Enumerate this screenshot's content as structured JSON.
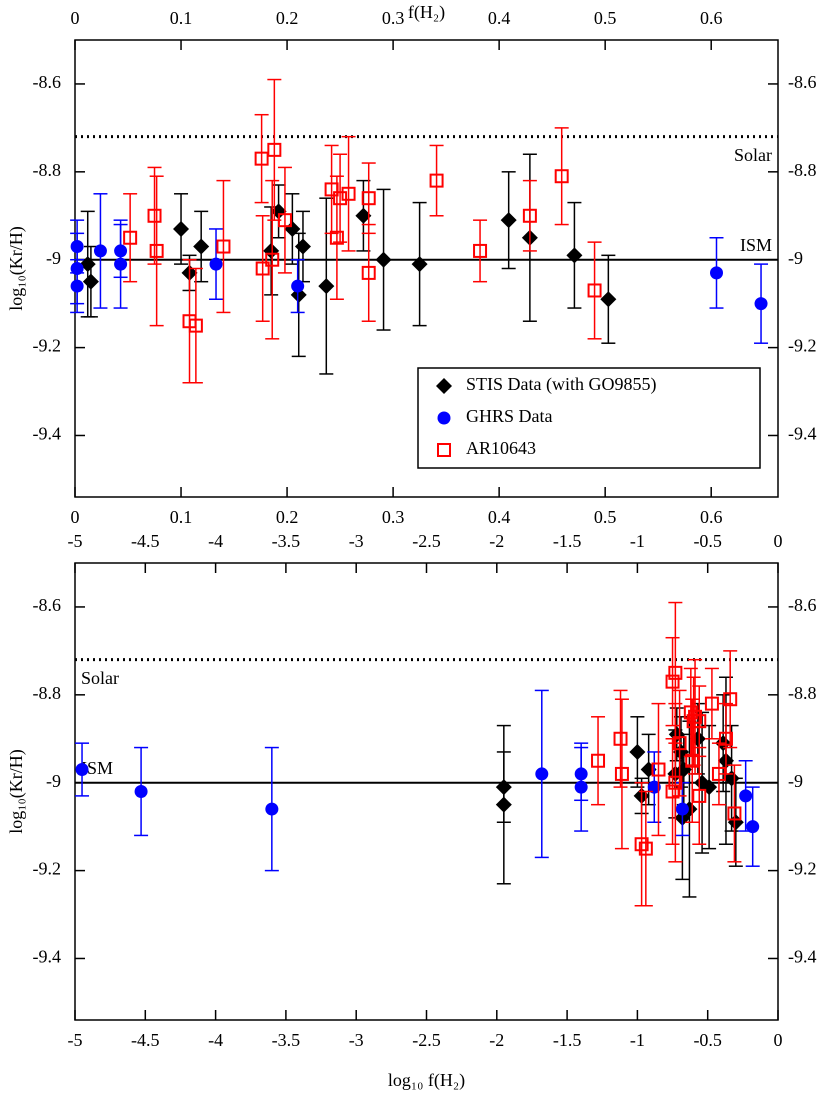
{
  "chart_data": [
    {
      "type": "scatter",
      "xlabel": "f(H₂)",
      "xlabel_side": "top",
      "ylabel": "log₁₀(Kr/H)",
      "xlim": [
        0,
        0.663
      ],
      "xticks": [
        0,
        0.1,
        0.2,
        0.3,
        0.4,
        0.5,
        0.6
      ],
      "ylim": [
        -9.54,
        -8.5
      ],
      "yticks": [
        -8.6,
        -8.8,
        -9,
        -9.2,
        -9.4
      ],
      "mirror_ticks": true,
      "legend": "lower right",
      "hlines": [
        {
          "y": -8.72,
          "label": "Solar",
          "style": "dotted",
          "side": "right"
        },
        {
          "y": -9,
          "label": "ISM",
          "style": "solid",
          "side": "right"
        }
      ],
      "series": [
        {
          "name": "STIS Data (with GO9855)",
          "color": "#000000",
          "marker": "diamond",
          "x": [
            0.012,
            0.015,
            0.1,
            0.108,
            0.119,
            0.185,
            0.192,
            0.205,
            0.211,
            0.215,
            0.237,
            0.272,
            0.291,
            0.325,
            0.409,
            0.429,
            0.471,
            0.503
          ],
          "values": [
            -9.01,
            -9.05,
            -8.93,
            -9.03,
            -8.97,
            -8.98,
            -8.89,
            -8.93,
            -9.08,
            -8.97,
            -9.06,
            -8.9,
            -9.0,
            -9.01,
            -8.91,
            -8.95,
            -8.99,
            -9.09
          ],
          "errors": [
            0.12,
            0.08,
            0.08,
            0.04,
            0.08,
            0.1,
            0.06,
            0.08,
            0.14,
            0.08,
            0.2,
            0.08,
            0.16,
            0.14,
            0.11,
            0.19,
            0.12,
            0.1
          ]
        },
        {
          "name": "GHRS Data",
          "color": "#0000ff",
          "marker": "circle",
          "x": [
            0.002,
            0.002,
            0.002,
            0.024,
            0.043,
            0.043,
            0.133,
            0.21,
            0.605,
            0.647
          ],
          "values": [
            -8.97,
            -9.02,
            -9.06,
            -8.98,
            -8.98,
            -9.01,
            -9.01,
            -9.06,
            -9.03,
            -9.1
          ],
          "errors": [
            0.06,
            0.08,
            0.06,
            0.13,
            0.06,
            0.1,
            0.08,
            0.06,
            0.08,
            0.09
          ]
        },
        {
          "name": "AR10643",
          "color": "#ff0000",
          "marker": "square-open",
          "x": [
            0.052,
            0.075,
            0.077,
            0.108,
            0.114,
            0.14,
            0.176,
            0.177,
            0.188,
            0.186,
            0.198,
            0.242,
            0.247,
            0.258,
            0.25,
            0.277,
            0.277,
            0.341,
            0.382,
            0.429,
            0.459,
            0.49
          ],
          "values": [
            -8.95,
            -8.9,
            -8.98,
            -9.14,
            -9.15,
            -8.97,
            -8.77,
            -9.02,
            -8.75,
            -9.0,
            -8.91,
            -8.84,
            -8.95,
            -8.85,
            -8.86,
            -9.03,
            -8.86,
            -8.82,
            -8.98,
            -8.9,
            -8.81,
            -9.07
          ],
          "errors": [
            0.1,
            0.11,
            0.17,
            0.14,
            0.13,
            0.15,
            0.1,
            0.12,
            0.16,
            0.18,
            0.12,
            0.1,
            0.14,
            0.13,
            0.1,
            0.11,
            0.08,
            0.08,
            0.07,
            0.08,
            0.11,
            0.11
          ]
        }
      ]
    },
    {
      "type": "scatter",
      "xlabel": "log₁₀ f(H₂)",
      "xlabel_side": "bottom",
      "ylabel": "log₁₀(Kr/H)",
      "xlim": [
        -5,
        0
      ],
      "xticks": [
        -5,
        -4.5,
        -4,
        -3.5,
        -3,
        -2.5,
        -2,
        -1.5,
        -1,
        -0.5,
        0
      ],
      "ylim": [
        -9.54,
        -8.5
      ],
      "yticks": [
        -8.6,
        -8.8,
        -9,
        -9.2,
        -9.4
      ],
      "mirror_ticks": true,
      "hlines": [
        {
          "y": -8.72,
          "label": "Solar",
          "style": "dotted",
          "side": "left"
        },
        {
          "y": -9,
          "label": "ISM",
          "style": "solid",
          "side": "left"
        }
      ],
      "series": [
        {
          "color": "#000000",
          "marker": "diamond",
          "x": [
            -1.95,
            -1.95,
            -1.0,
            -0.97,
            -0.92,
            -0.73,
            -0.72,
            -0.69,
            -0.68,
            -0.67,
            -0.63,
            -0.57,
            -0.54,
            -0.49,
            -0.39,
            -0.37,
            -0.33,
            -0.3
          ],
          "values": [
            -9.01,
            -9.05,
            -8.93,
            -9.03,
            -8.97,
            -8.98,
            -8.89,
            -8.93,
            -9.08,
            -8.97,
            -9.06,
            -8.9,
            -9.0,
            -9.01,
            -8.91,
            -8.95,
            -8.99,
            -9.09
          ],
          "errors": [
            0.08,
            0.18,
            0.08,
            0.04,
            0.08,
            0.1,
            0.06,
            0.08,
            0.14,
            0.08,
            0.2,
            0.08,
            0.16,
            0.14,
            0.11,
            0.19,
            0.12,
            0.1
          ]
        },
        {
          "color": "#0000ff",
          "marker": "circle",
          "x": [
            -4.95,
            -4.53,
            -3.6,
            -1.68,
            -1.4,
            -1.4,
            -0.88,
            -0.68,
            -0.23,
            -0.18
          ],
          "values": [
            -8.97,
            -9.02,
            -9.06,
            -8.98,
            -8.98,
            -9.01,
            -9.01,
            -9.06,
            -9.03,
            -9.1
          ],
          "errors": [
            0.06,
            0.1,
            0.14,
            0.19,
            0.06,
            0.1,
            0.08,
            0.06,
            0.08,
            0.09
          ]
        },
        {
          "color": "#ff0000",
          "marker": "square-open",
          "x": [
            -1.28,
            -1.12,
            -1.11,
            -0.97,
            -0.94,
            -0.85,
            -0.75,
            -0.75,
            -0.73,
            -0.73,
            -0.7,
            -0.62,
            -0.61,
            -0.59,
            -0.6,
            -0.56,
            -0.56,
            -0.47,
            -0.42,
            -0.37,
            -0.34,
            -0.31
          ],
          "values": [
            -8.95,
            -8.9,
            -8.98,
            -9.14,
            -9.15,
            -8.97,
            -8.77,
            -9.02,
            -8.75,
            -9.0,
            -8.91,
            -8.84,
            -8.95,
            -8.85,
            -8.86,
            -9.03,
            -8.86,
            -8.82,
            -8.98,
            -8.9,
            -8.81,
            -9.07
          ],
          "errors": [
            0.1,
            0.11,
            0.17,
            0.14,
            0.13,
            0.15,
            0.1,
            0.12,
            0.16,
            0.18,
            0.12,
            0.1,
            0.14,
            0.13,
            0.1,
            0.11,
            0.08,
            0.08,
            0.07,
            0.08,
            0.11,
            0.11
          ]
        }
      ]
    }
  ]
}
